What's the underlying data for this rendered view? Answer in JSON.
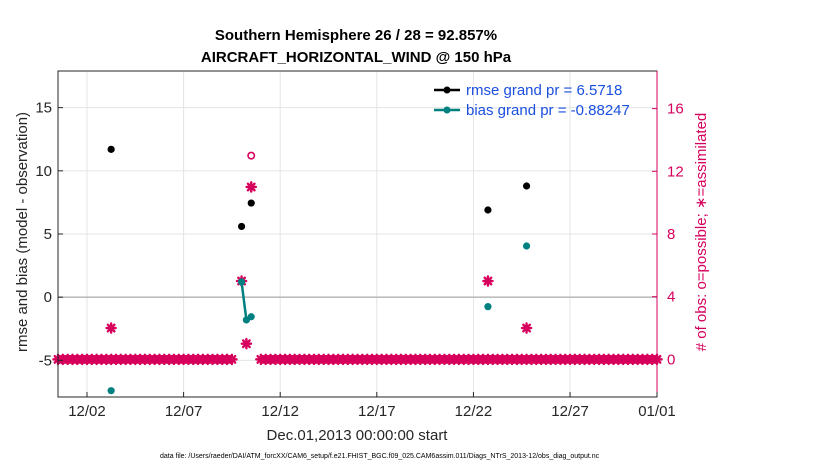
{
  "chart_data": {
    "type": "scatter",
    "title": "Southern Hemisphere 26 / 28 = 92.857%",
    "subtitle": "AIRCRAFT_HORIZONTAL_WIND @ 150 hPa",
    "xlabel": "Dec.01,2013 00:00:00 start",
    "ylabel": "rmse and bias (model - observation)",
    "ylabel_right": "# of obs: o=possible; ∗=assimilated",
    "footnote": "data file: /Users/raeder/DAI/ATM_forcXX/CAM6_setup/f.e21.FHIST_BGC.f09_025.CAM6assim.011/Diags_NTrS_2013-12/obs_diag_output.nc",
    "xlim": [
      0.5,
      31.5
    ],
    "ylim": [
      -7.9,
      17.9
    ],
    "ylim_right": [
      -2.4,
      18.4
    ],
    "x_ticks": [
      {
        "x": 2.0,
        "label": "12/02"
      },
      {
        "x": 7.0,
        "label": "12/07"
      },
      {
        "x": 12.0,
        "label": "12/12"
      },
      {
        "x": 17.0,
        "label": "12/17"
      },
      {
        "x": 22.0,
        "label": "12/22"
      },
      {
        "x": 27.0,
        "label": "12/27"
      },
      {
        "x": 32.0,
        "label": "01/01"
      }
    ],
    "y_ticks": [
      {
        "y": -5,
        "label": "-5"
      },
      {
        "y": 0,
        "label": "0"
      },
      {
        "y": 5,
        "label": "5"
      },
      {
        "y": 10,
        "label": "10"
      },
      {
        "y": 15,
        "label": "15"
      }
    ],
    "y_ticks_right": [
      {
        "y": 0,
        "label": "0"
      },
      {
        "y": 4,
        "label": "4"
      },
      {
        "y": 8,
        "label": "8"
      },
      {
        "y": 12,
        "label": "12"
      },
      {
        "y": 16,
        "label": "16"
      }
    ],
    "zero_line": 0,
    "series": [
      {
        "name": "rmse grand pr = 6.5718",
        "color": "#000000",
        "points": [
          {
            "x": 3.25,
            "y": 11.7
          },
          {
            "x": 10.0,
            "y": 5.6
          },
          {
            "x": 10.5,
            "y": 7.45
          },
          {
            "x": 22.75,
            "y": 6.9
          },
          {
            "x": 24.75,
            "y": 8.8
          }
        ]
      },
      {
        "name": "bias grand pr = -0.88247",
        "color": "#008080",
        "points": [
          {
            "x": 3.25,
            "y": -7.4
          },
          {
            "x": 10.0,
            "y": 1.2
          },
          {
            "x": 10.25,
            "y": -1.8
          },
          {
            "x": 10.5,
            "y": -1.55
          },
          {
            "x": 22.75,
            "y": -0.75
          },
          {
            "x": 24.75,
            "y": 4.05
          }
        ],
        "line_segments": [
          [
            1,
            2
          ],
          [
            2,
            3
          ]
        ]
      },
      {
        "name": "obs possible",
        "axis": "right",
        "color": "#d6005c",
        "marker": "circle-open",
        "points": [
          {
            "x": 10.5,
            "y": 13.0
          }
        ]
      },
      {
        "name": "obs assimilated",
        "axis": "right",
        "color": "#d6005c",
        "marker": "star",
        "points": [
          {
            "x": 3.25,
            "y": 2
          },
          {
            "x": 10.0,
            "y": 5
          },
          {
            "x": 10.25,
            "y": 1
          },
          {
            "x": 10.5,
            "y": 11
          },
          {
            "x": 22.75,
            "y": 5
          },
          {
            "x": 24.75,
            "y": 2
          }
        ],
        "zero_band": {
          "from": 0.5,
          "to": 31.5,
          "step": 0.25,
          "y": 0,
          "gap": [
            9.75,
            11.0
          ]
        }
      }
    ]
  }
}
